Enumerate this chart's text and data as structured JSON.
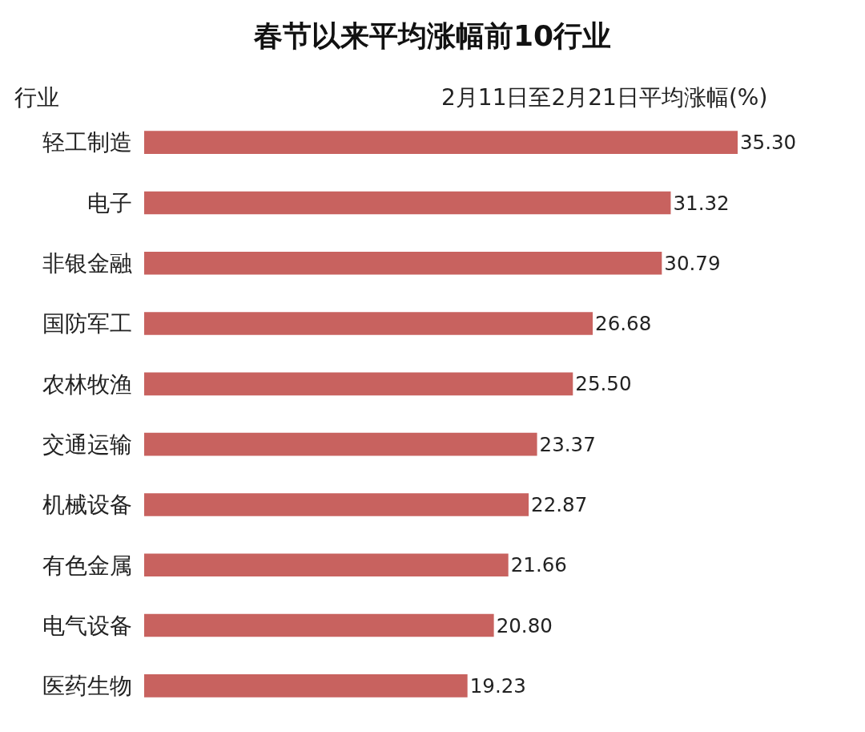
{
  "chart_data": {
    "type": "bar",
    "orientation": "horizontal",
    "title": "春节以来平均涨幅前10行业",
    "ylabel": "行业",
    "xlabel": "2月11日至2月21日平均涨幅(%)",
    "categories": [
      "轻工制造",
      "电子",
      "非银金融",
      "国防军工",
      "农林牧渔",
      "交通运输",
      "机械设备",
      "有色金属",
      "电气设备",
      "医药生物"
    ],
    "values": [
      35.3,
      31.32,
      30.79,
      26.68,
      25.5,
      23.37,
      22.87,
      21.66,
      20.8,
      19.23
    ],
    "value_labels": [
      "35.30",
      "31.32",
      "30.79",
      "26.68",
      "25.50",
      "23.37",
      "22.87",
      "21.66",
      "20.80",
      "19.23"
    ],
    "color": "#c8625f",
    "legend": false,
    "tick_labels": "y"
  }
}
